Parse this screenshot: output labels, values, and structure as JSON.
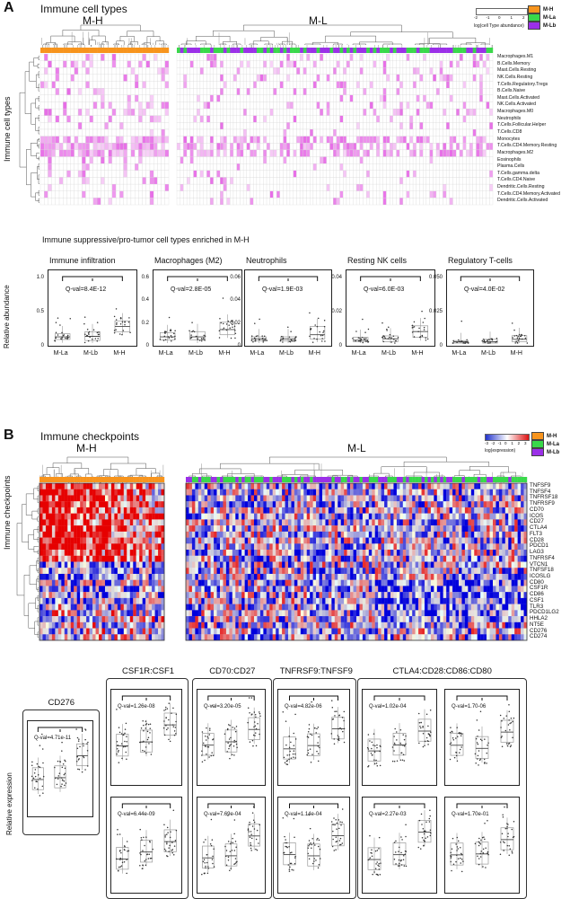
{
  "panelA": {
    "letter": "A",
    "title": "Immune cell types",
    "group_mh": "M-H",
    "group_ml": "M-L",
    "ylabel": "Immune cell types",
    "scale_label": "log(cell Type abundance)",
    "scale_ticks": [
      "-2",
      "-1",
      "0",
      "1",
      "2"
    ],
    "legend": [
      {
        "label": "M-H",
        "color": "#F7941D"
      },
      {
        "label": "M-La",
        "color": "#39D84A"
      },
      {
        "label": "M-Lb",
        "color": "#9B30E8"
      }
    ],
    "rows": [
      "Macrophages.M1",
      "B.Cells.Memory",
      "Mast.Cells.Resting",
      "NK.Cells.Resting",
      "T.Cells.Regulatory.Tregs",
      "B.Cells.Naive",
      "Mast.Cells.Activated",
      "NK.Cells.Activated",
      "Macrophages.M0",
      "Neutrophils",
      "T.Cells.Follicular.Helper",
      "T.Cells.CD8",
      "Monocytes",
      "T.Cells.CD4.Memory.Resting",
      "Macrophages.M2",
      "Eosinophils",
      "Plasma.Cells",
      "T.Cells.gamma.delta",
      "T.Cells.CD4.Naive",
      "Dendritic.Cells.Resting",
      "T.Cells.CD4.Memory.Activated",
      "Dendritic.Cells.Activated"
    ],
    "subtitle": "Immune suppressive/pro-tumor cell types enriched in M-H",
    "box_ylabel": "Relative abundance",
    "boxplots": [
      {
        "title": "Immune infiltration",
        "q": "Q-val=8.4E-12",
        "yticks": [
          "1.0",
          "0.5",
          "0"
        ],
        "ymax": 1.25,
        "medians": [
          0.12,
          0.13,
          0.32
        ],
        "q1": [
          0.07,
          0.05,
          0.22
        ],
        "q3": [
          0.18,
          0.22,
          0.43
        ],
        "x": [
          "M-La",
          "M-Lb",
          "M-H"
        ]
      },
      {
        "title": "Macrophages (M2)",
        "q": "Q-val=2.8E-05",
        "yticks": [
          "0.6",
          "0.4",
          "0.2",
          "0"
        ],
        "ymax": 0.62,
        "medians": [
          0.06,
          0.06,
          0.13
        ],
        "q1": [
          0.03,
          0.03,
          0.08
        ],
        "q3": [
          0.1,
          0.11,
          0.2
        ],
        "x": [
          "M-La",
          "M-Lb",
          "M-H"
        ]
      },
      {
        "title": "Neutrophils",
        "q": "Q-val=1.9E-03",
        "yticks": [
          "0.06",
          "0.04",
          "0.02",
          "0"
        ],
        "ymax": 0.062,
        "medians": [
          0.004,
          0.004,
          0.008
        ],
        "q1": [
          0.002,
          0.002,
          0.004
        ],
        "q3": [
          0.006,
          0.006,
          0.016
        ],
        "x": [
          "M-La",
          "M-Lb",
          "M-H"
        ]
      },
      {
        "title": "Resting NK cells",
        "q": "Q-val=6.0E-03",
        "yticks": [
          "0.04",
          "0.02",
          "0"
        ],
        "ymax": 0.045,
        "medians": [
          0.002,
          0.003,
          0.008
        ],
        "q1": [
          0.001,
          0.001,
          0.004
        ],
        "q3": [
          0.004,
          0.005,
          0.012
        ],
        "x": [
          "M-La",
          "M-Lb",
          "M-H"
        ]
      },
      {
        "title": "Regulatory T-cells",
        "q": "Q-val=4.0E-02",
        "yticks": [
          "0.050",
          "0.025",
          "0"
        ],
        "ymax": 0.052,
        "medians": [
          0.001,
          0.001,
          0.003
        ],
        "q1": [
          0,
          0,
          0.001
        ],
        "q3": [
          0.002,
          0.003,
          0.006
        ],
        "x": [
          "M-La",
          "M-Lb",
          "M-H"
        ]
      }
    ]
  },
  "panelB": {
    "letter": "B",
    "title": "Immune checkpoints",
    "group_mh": "M-H",
    "group_ml": "M-L",
    "ylabel": "Immune checkpoints",
    "scale_label": "log(expression)",
    "scale_ticks": [
      "-3",
      "-2",
      "-1",
      "0",
      "1",
      "2",
      "3"
    ],
    "legend": [
      {
        "label": "M-H",
        "color": "#F7941D"
      },
      {
        "label": "M-La",
        "color": "#39D84A"
      },
      {
        "label": "M-Lb",
        "color": "#9B30E8"
      }
    ],
    "rows": [
      "TNFSF9",
      "TNFSF4",
      "TNFRSF18",
      "TNFRSF9",
      "CD70",
      "ICOS",
      "CD27",
      "CTLA4",
      "FLT3",
      "CD28",
      "PDCD1",
      "LAG3",
      "TNFRSF4",
      "VTCN1",
      "TNFSF18",
      "ICOSLG",
      "CD80",
      "CSF1R",
      "CD86",
      "CSF1",
      "TLR3",
      "PDCD1LG2",
      "HHLA2",
      "NT5E",
      "CD276",
      "CD274"
    ],
    "box_ylabel": "Relative expression",
    "groups": [
      {
        "title": "CD276",
        "plots": [
          {
            "q": "Q-val=4.71e-11"
          }
        ]
      },
      {
        "title": "CSF1R:CSF1",
        "plots": [
          {
            "q": "Q-val=1.26e-08"
          },
          {
            "q": "Q-val=6.44e-09"
          }
        ]
      },
      {
        "title": "CD70:CD27",
        "plots": [
          {
            "q": "Q-val=3.20e-05"
          },
          {
            "q": "Q-val=7.69e-04"
          }
        ]
      },
      {
        "title": "TNFRSF9:TNFSF9",
        "plots": [
          {
            "q": "Q-val=4.82e-06"
          },
          {
            "q": "Q-val=1.14e-04"
          }
        ]
      },
      {
        "title": "CTLA4:CD28:CD86:CD80",
        "plots": [
          {
            "q": "Q-val=1.02e-04"
          },
          {
            "q": "Q-val=1.70-06"
          },
          {
            "q": "Q-val=2.27e-03"
          },
          {
            "q": "Q-val=1.70e-01"
          }
        ]
      }
    ]
  }
}
